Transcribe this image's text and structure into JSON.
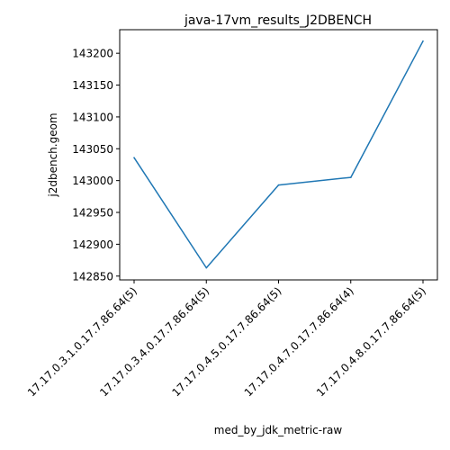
{
  "chart_data": {
    "type": "line",
    "title": "java-17vm_results_J2DBENCH",
    "xlabel": "med_by_jdk_metric-raw",
    "ylabel": "j2dbench.geom",
    "categories": [
      "17.17.0.3.1.0.17.7.86.64(5)",
      "17.17.0.3.4.0.17.7.86.64(5)",
      "17.17.0.4.5.0.17.7.86.64(5)",
      "17.17.0.4.7.0.17.7.86.64(4)",
      "17.17.0.4.8.0.17.7.86.64(5)"
    ],
    "series": [
      {
        "values": [
          143036,
          142863,
          142993,
          143005,
          143219
        ]
      }
    ],
    "ylim": [
      142844,
      143237
    ],
    "yticks": [
      142850,
      142900,
      142950,
      143000,
      143050,
      143100,
      143150,
      143200
    ],
    "grid": false,
    "line_color": "#1f77b4"
  }
}
